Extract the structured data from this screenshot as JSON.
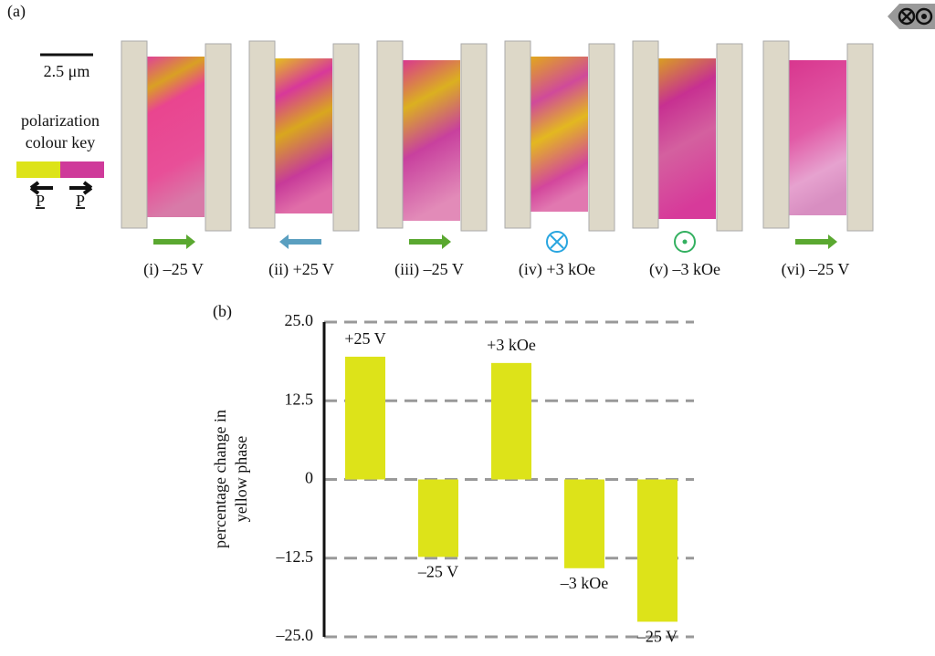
{
  "panel_a": {
    "label": "(a)",
    "scale_bar": "2.5 μm",
    "key_title": [
      "polarization",
      "colour key"
    ],
    "key_arrows": [
      "P",
      "P"
    ],
    "images": [
      "(i) –25 V",
      "(ii) +25 V",
      "(iii) –25 V",
      "(iv) +3 kOe",
      "(v) –3 kOe",
      "(vi) –25 V"
    ]
  },
  "chart_data": {
    "type": "bar",
    "panel_label": "(b)",
    "y_label": [
      "percentage change in",
      "yellow phase"
    ],
    "categories": [
      "+25 V",
      "–25 V",
      "+3 kOe",
      "–3 kOe",
      "–25 V"
    ],
    "values": [
      19.5,
      -12.3,
      18.5,
      -14.1,
      -22.6
    ],
    "color": "#dde319",
    "ylim": [
      -25,
      25
    ],
    "yticks": [
      {
        "value": -25,
        "label": "–25.0"
      },
      {
        "value": -12.5,
        "label": "–12.5"
      },
      0,
      12.5,
      {
        "value": 25,
        "label": "25.0"
      }
    ],
    "grid": true
  }
}
